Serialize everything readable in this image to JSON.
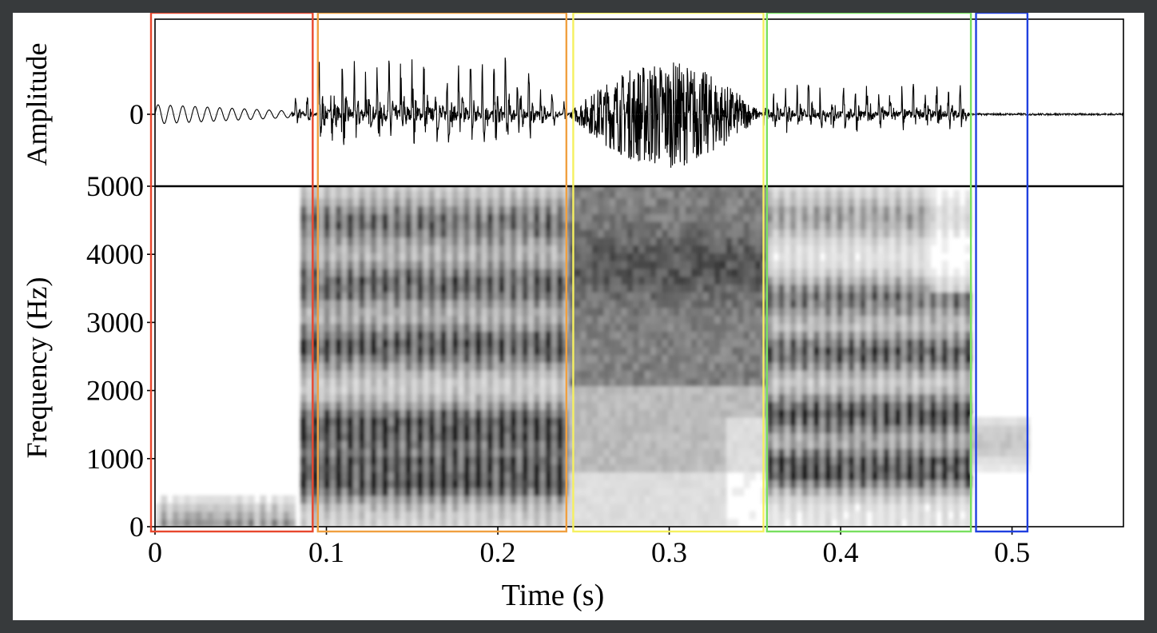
{
  "chart_data": [
    {
      "type": "line",
      "panel": "waveform",
      "ylabel": "Amplitude",
      "ytick_labels": [
        "0"
      ],
      "xlim": [
        0,
        0.565
      ],
      "description": "speech waveform",
      "segments_envelope": [
        {
          "x": [
            0.0,
            0.08
          ],
          "amp": 0.18
        },
        {
          "x": [
            0.08,
            0.095
          ],
          "amp": 0.35
        },
        {
          "x": [
            0.095,
            0.24
          ],
          "amp": 1.0
        },
        {
          "x": [
            0.24,
            0.355
          ],
          "amp": 0.6
        },
        {
          "x": [
            0.355,
            0.475
          ],
          "amp": 0.55
        },
        {
          "x": [
            0.475,
            0.565
          ],
          "amp": 0.02
        }
      ]
    },
    {
      "type": "heatmap",
      "panel": "spectrogram",
      "xlabel": "Time (s)",
      "ylabel": "Frequency (Hz)",
      "xlim": [
        0,
        0.565
      ],
      "ylim": [
        0,
        5000
      ],
      "xticks": [
        0,
        0.1,
        0.2,
        0.3,
        0.4,
        0.5
      ],
      "xtick_labels": [
        "0",
        "0.1",
        "0.2",
        "0.3",
        "0.4",
        "0.5"
      ],
      "yticks": [
        0,
        1000,
        2000,
        3000,
        4000,
        5000
      ],
      "ytick_labels": [
        "0",
        "1000",
        "2000",
        "3000",
        "4000",
        "5000"
      ],
      "colormap": "grayscale (darker = more energy)"
    }
  ],
  "regions": [
    {
      "start": 0.0,
      "end": 0.092,
      "color": "#e8472e"
    },
    {
      "start": 0.095,
      "end": 0.24,
      "color": "#f0a040"
    },
    {
      "start": 0.244,
      "end": 0.355,
      "color": "#f5f060"
    },
    {
      "start": 0.357,
      "end": 0.476,
      "color": "#78e060"
    },
    {
      "start": 0.479,
      "end": 0.509,
      "color": "#2040e0"
    }
  ]
}
